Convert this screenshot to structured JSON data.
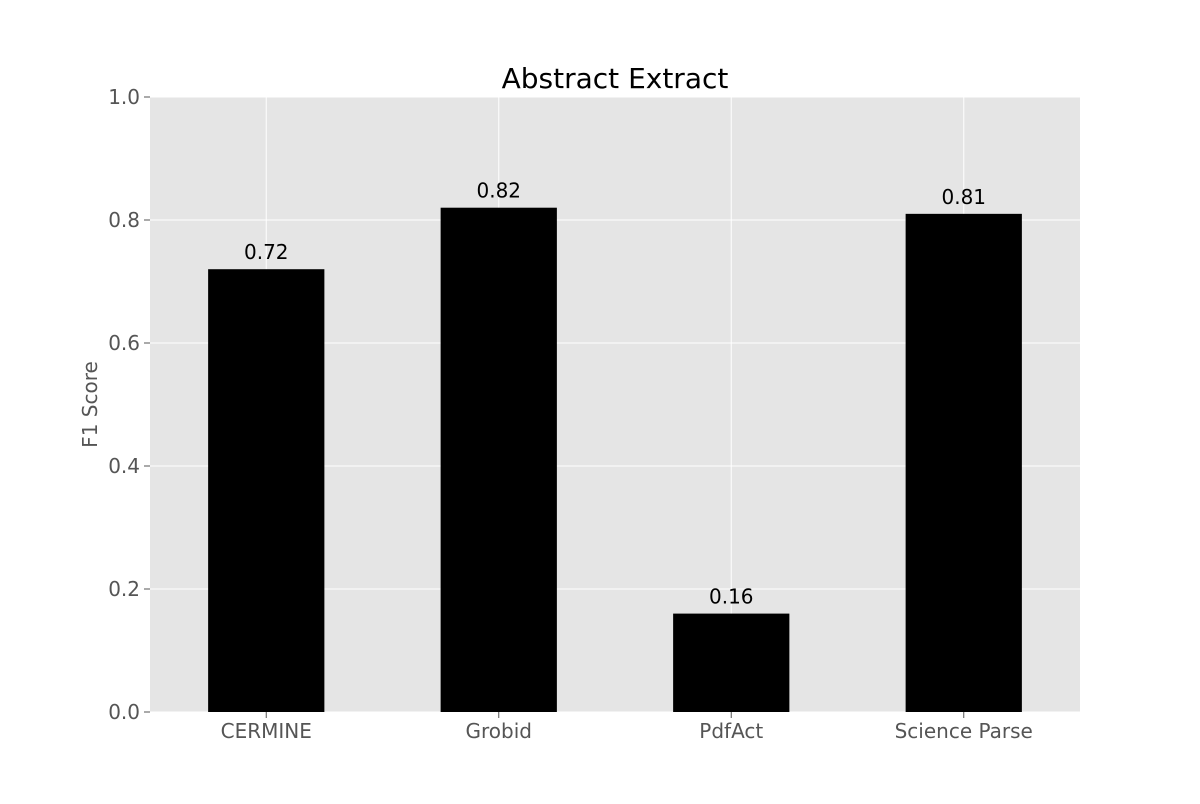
{
  "chart_data": {
    "type": "bar",
    "title": "Abstract Extract",
    "xlabel": "",
    "ylabel": "F1 Score",
    "categories": [
      "CERMINE",
      "Grobid",
      "PdfAct",
      "Science Parse"
    ],
    "values": [
      0.72,
      0.82,
      0.16,
      0.81
    ],
    "value_labels": [
      "0.72",
      "0.82",
      "0.16",
      "0.81"
    ],
    "ylim": [
      0.0,
      1.0
    ],
    "yticks": [
      "0.0",
      "0.2",
      "0.4",
      "0.6",
      "0.8",
      "1.0"
    ],
    "grid": true,
    "bar_color": "#000000",
    "plot_background": "#e5e5e5",
    "grid_color": "#ffffff"
  }
}
